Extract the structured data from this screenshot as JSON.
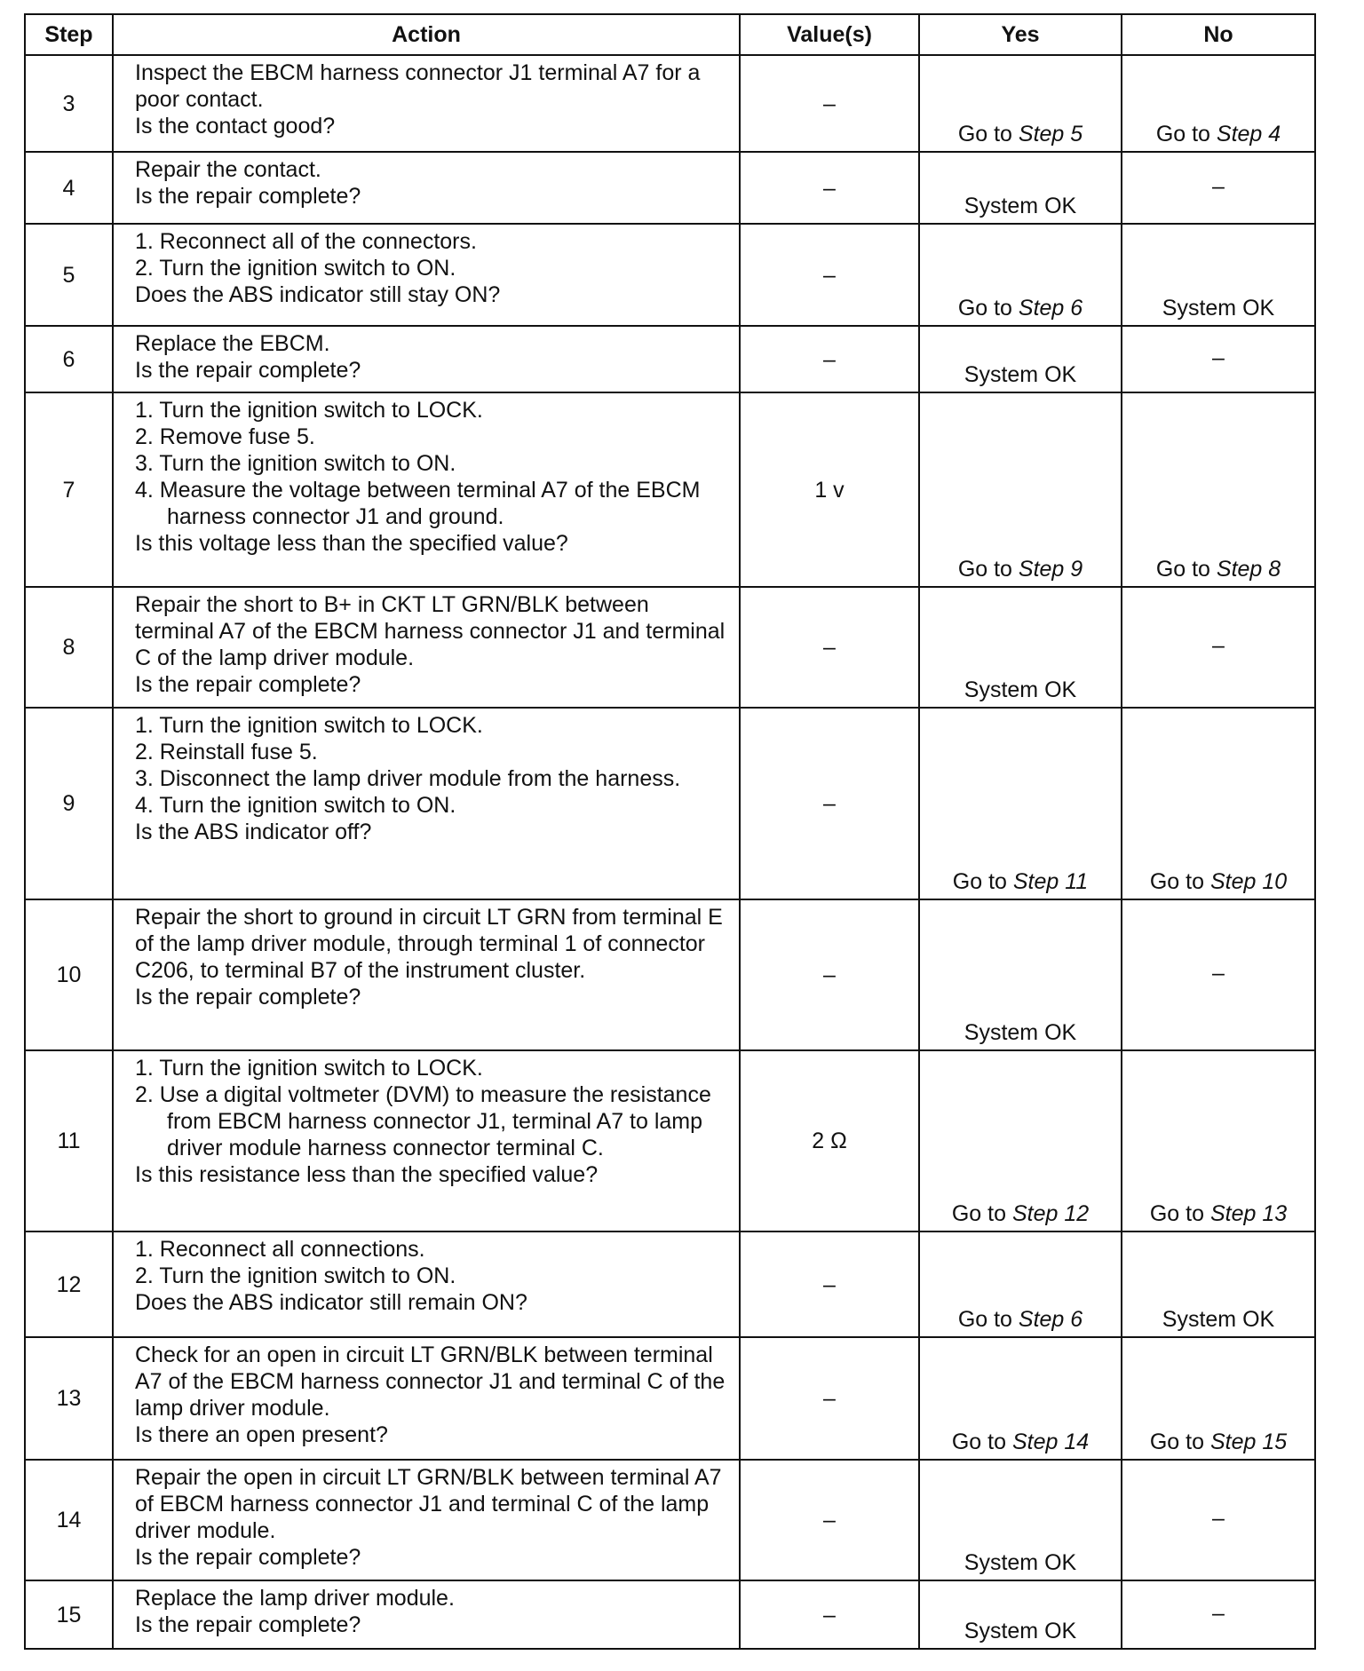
{
  "headers": [
    "Step",
    "Action",
    "Value(s)",
    "Yes",
    "No"
  ],
  "rows": [
    {
      "step": "3",
      "action": [
        "Inspect the EBCM harness connector J1 terminal A7 for a poor contact.",
        "Is the contact good?"
      ],
      "value": "–",
      "yes": {
        "text": "Go to ",
        "step": "Step 5"
      },
      "no": {
        "text": "Go to ",
        "step": "Step 4"
      }
    },
    {
      "step": "4",
      "action": [
        "Repair the contact.",
        "Is the repair complete?"
      ],
      "value": "–",
      "yes": {
        "text": "System OK",
        "step": ""
      },
      "no": {
        "text": "–",
        "step": ""
      }
    },
    {
      "step": "5",
      "action": [
        "1. Reconnect all of the connectors.",
        "2. Turn the ignition switch to ON.",
        "Does the ABS indicator still stay ON?"
      ],
      "value": "–",
      "yes": {
        "text": "Go to ",
        "step": "Step 6"
      },
      "no": {
        "text": "System OK",
        "step": ""
      }
    },
    {
      "step": "6",
      "action": [
        "Replace the EBCM.",
        "Is the repair complete?"
      ],
      "value": "–",
      "yes": {
        "text": "System OK",
        "step": ""
      },
      "no": {
        "text": "–",
        "step": ""
      }
    },
    {
      "step": "7",
      "action": [
        "1. Turn the ignition switch to LOCK.",
        "2. Remove fuse 5.",
        "3. Turn the ignition switch to ON.",
        "4. Measure the voltage between terminal A7 of the EBCM harness connector J1 and ground.",
        "Is this voltage less than the specified value?"
      ],
      "value": "1 v",
      "yes": {
        "text": "Go to ",
        "step": "Step 9"
      },
      "no": {
        "text": "Go to ",
        "step": "Step 8"
      }
    },
    {
      "step": "8",
      "action": [
        "Repair the short to B+ in CKT LT GRN/BLK between terminal A7 of the EBCM harness connector J1 and terminal C of the lamp driver module.",
        "Is the repair complete?"
      ],
      "value": "–",
      "yes": {
        "text": "System OK",
        "step": ""
      },
      "no": {
        "text": "–",
        "step": ""
      }
    },
    {
      "step": "9",
      "action": [
        "1. Turn the ignition switch to LOCK.",
        "2. Reinstall fuse 5.",
        "3. Disconnect the lamp driver module from the harness.",
        "4. Turn the ignition switch to ON.",
        "Is the ABS indicator off?"
      ],
      "value": "–",
      "yes": {
        "text": "Go to ",
        "step": "Step 11"
      },
      "no": {
        "text": "Go to ",
        "step": "Step 10"
      }
    },
    {
      "step": "10",
      "action": [
        "Repair the short to ground in circuit LT GRN from terminal E of the lamp driver module, through terminal 1 of connector C206, to terminal B7 of the instrument cluster.",
        "Is the repair complete?"
      ],
      "value": "–",
      "yes": {
        "text": "System OK",
        "step": ""
      },
      "no": {
        "text": "–",
        "step": ""
      }
    },
    {
      "step": "11",
      "action": [
        "1. Turn the ignition switch to LOCK.",
        "2. Use a digital voltmeter (DVM) to measure the resistance from EBCM harness connector J1, terminal A7 to lamp driver module harness connector terminal C.",
        "Is this resistance less than the specified value?"
      ],
      "value": "2 Ω",
      "yes": {
        "text": "Go to ",
        "step": "Step 12"
      },
      "no": {
        "text": "Go to ",
        "step": "Step 13"
      }
    },
    {
      "step": "12",
      "action": [
        "1. Reconnect all connections.",
        "2. Turn the ignition switch to ON.",
        "Does the ABS indicator still remain ON?"
      ],
      "value": "–",
      "yes": {
        "text": "Go to ",
        "step": "Step 6"
      },
      "no": {
        "text": "System OK",
        "step": ""
      }
    },
    {
      "step": "13",
      "action": [
        "Check for an open in circuit LT GRN/BLK between terminal A7 of the EBCM harness connector J1 and terminal C of the lamp driver module.",
        "Is there an open present?"
      ],
      "value": "–",
      "yes": {
        "text": "Go to ",
        "step": "Step 14"
      },
      "no": {
        "text": "Go to ",
        "step": "Step 15"
      }
    },
    {
      "step": "14",
      "action": [
        "Repair the open in circuit LT GRN/BLK between terminal A7 of EBCM harness connector J1 and terminal C of the lamp driver module.",
        "Is the repair complete?"
      ],
      "value": "–",
      "yes": {
        "text": "System OK",
        "step": ""
      },
      "no": {
        "text": "–",
        "step": ""
      }
    },
    {
      "step": "15",
      "action": [
        "Replace the lamp driver module.",
        "Is the repair complete?"
      ],
      "value": "–",
      "yes": {
        "text": "System OK",
        "step": ""
      },
      "no": {
        "text": "–",
        "step": ""
      }
    }
  ]
}
